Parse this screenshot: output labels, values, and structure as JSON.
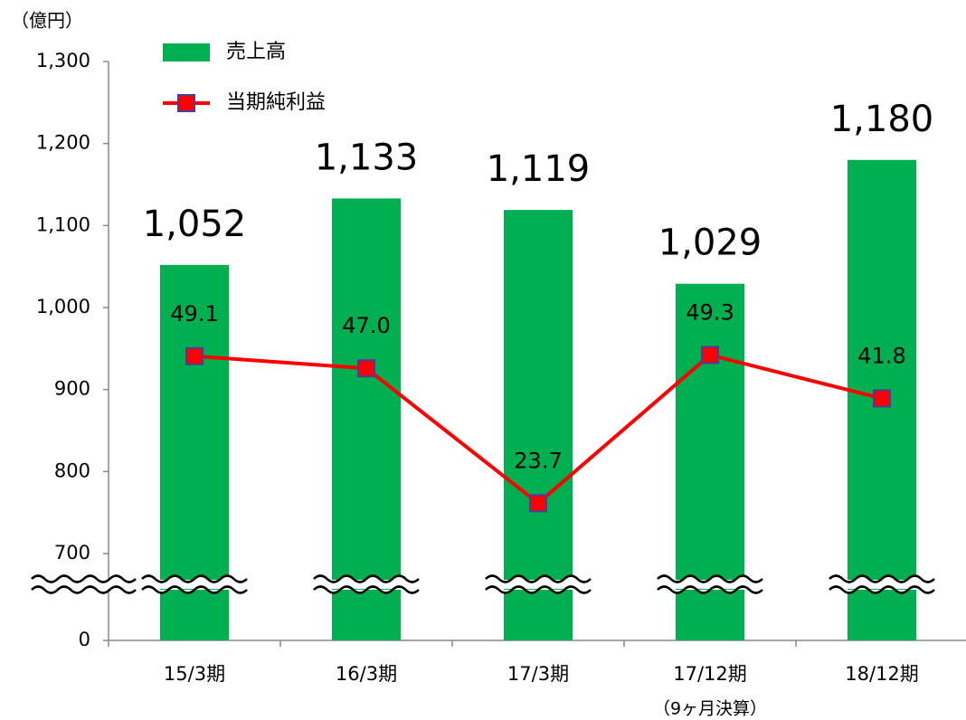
{
  "chart_data": {
    "type": "bar",
    "unit_label": "（億円）",
    "categories": [
      "15/3期",
      "16/3期",
      "17/3期",
      "17/12期",
      "18/12期"
    ],
    "annotation": "（9ヶ月決算）",
    "series": [
      {
        "name": "売上高",
        "color": "#00b050",
        "values": [
          1052,
          1133,
          1119,
          1029,
          1180
        ],
        "value_labels": [
          "1,052",
          "1,133",
          "1,119",
          "1,029",
          "1,180"
        ]
      },
      {
        "name": "当期純利益",
        "type": "line",
        "axis": "y2",
        "color": "#ff0000",
        "marker_edge": "#4b3c9c",
        "values": [
          49.1,
          47.0,
          23.7,
          49.3,
          41.8
        ],
        "value_labels": [
          "49.1",
          "47.0",
          "23.7",
          "49.3",
          "41.8"
        ]
      }
    ],
    "ylim": [
      0,
      1300
    ],
    "axis_break": [
      0,
      700
    ],
    "yticks": [
      0,
      700,
      800,
      900,
      {
        "value": 1000,
        "label": "1,000"
      },
      {
        "value": 1100,
        "label": "1,100"
      },
      {
        "value": 1200,
        "label": "1,200"
      },
      {
        "value": 1300,
        "label": "1,300"
      }
    ],
    "y2lim": [
      0,
      100
    ]
  }
}
